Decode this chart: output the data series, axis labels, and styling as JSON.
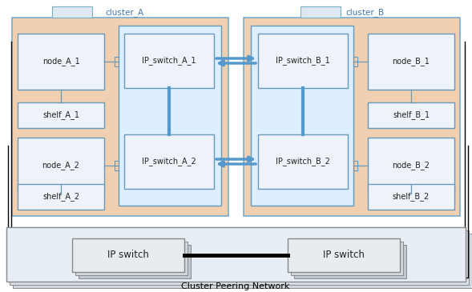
{
  "bg_color": "#ffffff",
  "cluster_bg": "#f0d0b0",
  "cluster_border": "#7aaccc",
  "node_fill": "#ddeeff",
  "node_border": "#6699bb",
  "sw_group_fill": "#ddeeff",
  "sw_group_border": "#6699bb",
  "cluster_label_fill": "#dde8f0",
  "peering_bg": "#e8eef5",
  "peering_border": "#888888",
  "ip_sw_fill": "#f0f0f0",
  "ip_sw_border": "#999999",
  "cluster_A_label": "cluster_A",
  "cluster_B_label": "cluster_B",
  "peering_label": "Cluster Peering Network",
  "ip_switch_left": "IP switch",
  "ip_switch_right": "IP switch",
  "arrow_color": "#5599cc",
  "line_color": "#000000",
  "conn_color": "#000000"
}
